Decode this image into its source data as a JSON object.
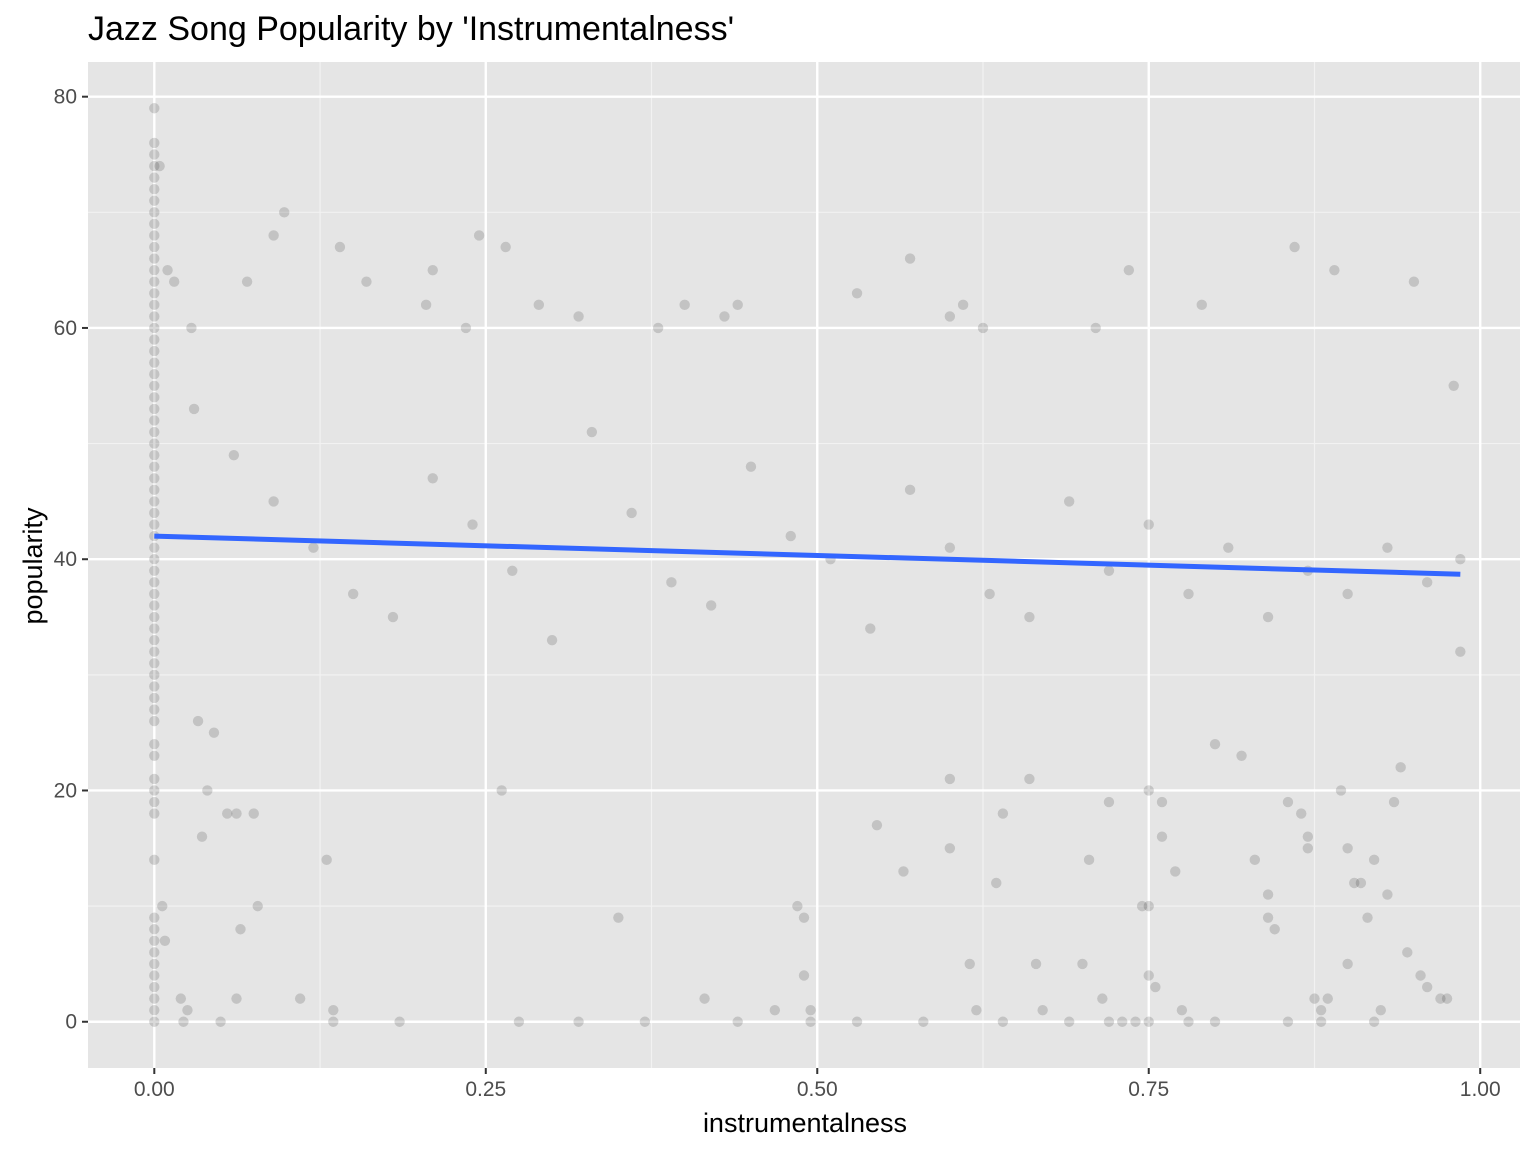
{
  "chart_data": {
    "type": "scatter",
    "title": "Jazz Song Popularity by 'Instrumentalness'",
    "xlabel": "instrumentalness",
    "ylabel": "popularity",
    "xlim": [
      -0.05,
      1.03
    ],
    "ylim": [
      -4,
      83
    ],
    "x_ticks": [
      0.0,
      0.25,
      0.5,
      0.75,
      1.0
    ],
    "x_tick_labels": [
      "0.00",
      "0.25",
      "0.50",
      "0.75",
      "1.00"
    ],
    "y_ticks": [
      0,
      20,
      40,
      60,
      80
    ],
    "y_tick_labels": [
      "0",
      "20",
      "40",
      "60",
      "80"
    ],
    "grid": true,
    "background": "#e5e5e5",
    "point_color": "#000000",
    "point_alpha": 0.15,
    "trend_line": {
      "x": [
        0.0,
        0.985
      ],
      "y": [
        42.0,
        38.7
      ],
      "color": "#3366ff"
    },
    "series": [
      {
        "values": [
          [
            0.0,
            79
          ],
          [
            0.0,
            76
          ],
          [
            0.0,
            75
          ],
          [
            0.0,
            74
          ],
          [
            0.0,
            73
          ],
          [
            0.0,
            72
          ],
          [
            0.0,
            71
          ],
          [
            0.0,
            70
          ],
          [
            0.0,
            69
          ],
          [
            0.0,
            68
          ],
          [
            0.0,
            67
          ],
          [
            0.0,
            66
          ],
          [
            0.0,
            65
          ],
          [
            0.0,
            64
          ],
          [
            0.0,
            63
          ],
          [
            0.0,
            62
          ],
          [
            0.0,
            61
          ],
          [
            0.0,
            60
          ],
          [
            0.0,
            59
          ],
          [
            0.0,
            58
          ],
          [
            0.0,
            57
          ],
          [
            0.0,
            56
          ],
          [
            0.0,
            55
          ],
          [
            0.0,
            54
          ],
          [
            0.0,
            53
          ],
          [
            0.0,
            52
          ],
          [
            0.0,
            51
          ],
          [
            0.0,
            50
          ],
          [
            0.0,
            49
          ],
          [
            0.0,
            48
          ],
          [
            0.0,
            47
          ],
          [
            0.0,
            46
          ],
          [
            0.0,
            45
          ],
          [
            0.0,
            44
          ],
          [
            0.0,
            43
          ],
          [
            0.0,
            42
          ],
          [
            0.0,
            41
          ],
          [
            0.0,
            40
          ],
          [
            0.0,
            39
          ],
          [
            0.0,
            38
          ],
          [
            0.0,
            37
          ],
          [
            0.0,
            36
          ],
          [
            0.0,
            35
          ],
          [
            0.0,
            34
          ],
          [
            0.0,
            33
          ],
          [
            0.0,
            32
          ],
          [
            0.0,
            31
          ],
          [
            0.0,
            30
          ],
          [
            0.0,
            29
          ],
          [
            0.0,
            28
          ],
          [
            0.0,
            27
          ],
          [
            0.0,
            26
          ],
          [
            0.0,
            24
          ],
          [
            0.0,
            23
          ],
          [
            0.0,
            21
          ],
          [
            0.0,
            20
          ],
          [
            0.0,
            19
          ],
          [
            0.0,
            18
          ],
          [
            0.0,
            14
          ],
          [
            0.0,
            9
          ],
          [
            0.0,
            8
          ],
          [
            0.0,
            7
          ],
          [
            0.0,
            6
          ],
          [
            0.0,
            5
          ],
          [
            0.0,
            4
          ],
          [
            0.0,
            3
          ],
          [
            0.0,
            2
          ],
          [
            0.0,
            1
          ],
          [
            0.0,
            0
          ],
          [
            0.004,
            74
          ],
          [
            0.006,
            10
          ],
          [
            0.008,
            7
          ],
          [
            0.01,
            65
          ],
          [
            0.015,
            64
          ],
          [
            0.02,
            2
          ],
          [
            0.022,
            0
          ],
          [
            0.025,
            1
          ],
          [
            0.028,
            60
          ],
          [
            0.033,
            26
          ],
          [
            0.036,
            16
          ],
          [
            0.04,
            20
          ],
          [
            0.045,
            25
          ],
          [
            0.05,
            0
          ],
          [
            0.055,
            18
          ],
          [
            0.062,
            18
          ],
          [
            0.062,
            2
          ],
          [
            0.065,
            8
          ],
          [
            0.07,
            64
          ],
          [
            0.075,
            18
          ],
          [
            0.078,
            10
          ],
          [
            0.09,
            68
          ],
          [
            0.098,
            70
          ],
          [
            0.11,
            2
          ],
          [
            0.13,
            14
          ],
          [
            0.135,
            1
          ],
          [
            0.135,
            0
          ],
          [
            0.14,
            67
          ],
          [
            0.16,
            64
          ],
          [
            0.185,
            0
          ],
          [
            0.205,
            62
          ],
          [
            0.21,
            65
          ],
          [
            0.235,
            60
          ],
          [
            0.245,
            68
          ],
          [
            0.262,
            20
          ],
          [
            0.265,
            67
          ],
          [
            0.275,
            0
          ],
          [
            0.29,
            62
          ],
          [
            0.32,
            0
          ],
          [
            0.32,
            61
          ],
          [
            0.35,
            9
          ],
          [
            0.37,
            0
          ],
          [
            0.38,
            60
          ],
          [
            0.4,
            62
          ],
          [
            0.415,
            2
          ],
          [
            0.43,
            61
          ],
          [
            0.44,
            62
          ],
          [
            0.44,
            0
          ],
          [
            0.468,
            1
          ],
          [
            0.485,
            10
          ],
          [
            0.49,
            9
          ],
          [
            0.49,
            4
          ],
          [
            0.495,
            1
          ],
          [
            0.495,
            0
          ],
          [
            0.53,
            0
          ],
          [
            0.53,
            63
          ],
          [
            0.545,
            17
          ],
          [
            0.565,
            13
          ],
          [
            0.57,
            66
          ],
          [
            0.58,
            0
          ],
          [
            0.6,
            61
          ],
          [
            0.6,
            21
          ],
          [
            0.6,
            15
          ],
          [
            0.61,
            62
          ],
          [
            0.615,
            5
          ],
          [
            0.62,
            1
          ],
          [
            0.625,
            60
          ],
          [
            0.635,
            12
          ],
          [
            0.64,
            18
          ],
          [
            0.64,
            0
          ],
          [
            0.66,
            21
          ],
          [
            0.665,
            5
          ],
          [
            0.67,
            1
          ],
          [
            0.69,
            0
          ],
          [
            0.7,
            5
          ],
          [
            0.705,
            14
          ],
          [
            0.71,
            60
          ],
          [
            0.715,
            2
          ],
          [
            0.72,
            0
          ],
          [
            0.72,
            19
          ],
          [
            0.73,
            0
          ],
          [
            0.735,
            65
          ],
          [
            0.74,
            0
          ],
          [
            0.745,
            10
          ],
          [
            0.75,
            10
          ],
          [
            0.75,
            0
          ],
          [
            0.75,
            20
          ],
          [
            0.75,
            4
          ],
          [
            0.755,
            3
          ],
          [
            0.76,
            19
          ],
          [
            0.76,
            16
          ],
          [
            0.77,
            13
          ],
          [
            0.775,
            1
          ],
          [
            0.78,
            0
          ],
          [
            0.79,
            62
          ],
          [
            0.8,
            0
          ],
          [
            0.8,
            24
          ],
          [
            0.82,
            23
          ],
          [
            0.83,
            14
          ],
          [
            0.84,
            9
          ],
          [
            0.84,
            11
          ],
          [
            0.845,
            8
          ],
          [
            0.855,
            0
          ],
          [
            0.855,
            19
          ],
          [
            0.86,
            67
          ],
          [
            0.865,
            18
          ],
          [
            0.87,
            15
          ],
          [
            0.87,
            16
          ],
          [
            0.875,
            2
          ],
          [
            0.88,
            1
          ],
          [
            0.88,
            0
          ],
          [
            0.885,
            2
          ],
          [
            0.89,
            65
          ],
          [
            0.895,
            20
          ],
          [
            0.9,
            5
          ],
          [
            0.9,
            15
          ],
          [
            0.905,
            12
          ],
          [
            0.91,
            12
          ],
          [
            0.915,
            9
          ],
          [
            0.92,
            14
          ],
          [
            0.92,
            0
          ],
          [
            0.925,
            1
          ],
          [
            0.93,
            11
          ],
          [
            0.935,
            19
          ],
          [
            0.94,
            22
          ],
          [
            0.945,
            6
          ],
          [
            0.95,
            64
          ],
          [
            0.955,
            4
          ],
          [
            0.96,
            3
          ],
          [
            0.97,
            2
          ],
          [
            0.975,
            2
          ],
          [
            0.98,
            55
          ],
          [
            0.985,
            32
          ],
          [
            0.985,
            40
          ],
          [
            0.03,
            53
          ],
          [
            0.06,
            49
          ],
          [
            0.09,
            45
          ],
          [
            0.12,
            41
          ],
          [
            0.15,
            37
          ],
          [
            0.18,
            35
          ],
          [
            0.21,
            47
          ],
          [
            0.24,
            43
          ],
          [
            0.27,
            39
          ],
          [
            0.3,
            33
          ],
          [
            0.33,
            51
          ],
          [
            0.36,
            44
          ],
          [
            0.39,
            38
          ],
          [
            0.42,
            36
          ],
          [
            0.45,
            48
          ],
          [
            0.48,
            42
          ],
          [
            0.51,
            40
          ],
          [
            0.54,
            34
          ],
          [
            0.57,
            46
          ],
          [
            0.6,
            41
          ],
          [
            0.63,
            37
          ],
          [
            0.66,
            35
          ],
          [
            0.69,
            45
          ],
          [
            0.72,
            39
          ],
          [
            0.75,
            43
          ],
          [
            0.78,
            37
          ],
          [
            0.81,
            41
          ],
          [
            0.84,
            35
          ],
          [
            0.87,
            39
          ],
          [
            0.9,
            37
          ],
          [
            0.93,
            41
          ],
          [
            0.96,
            38
          ]
        ]
      }
    ]
  }
}
